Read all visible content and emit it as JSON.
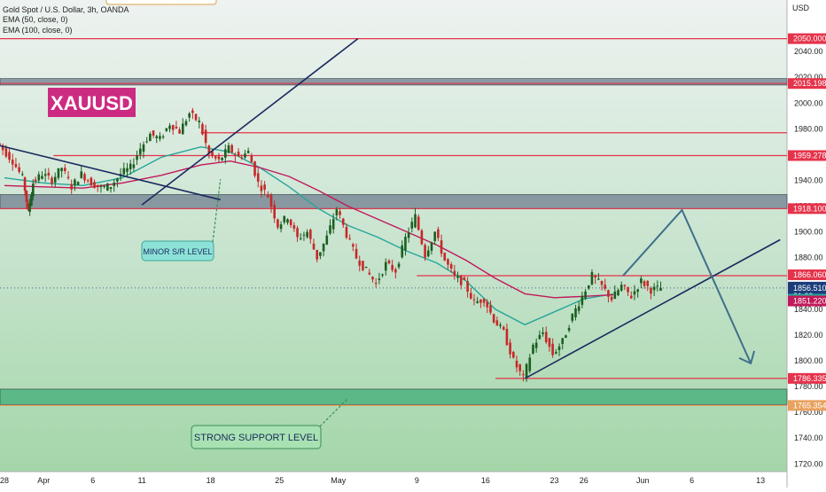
{
  "header": {
    "symbol_line": "Gold Spot / U.S. Dollar, 3h, OANDA",
    "ema50_line": "EMA (50, close, 0)",
    "ema100_line": "EMA (100, close, 0)"
  },
  "chart_data": {
    "type": "line",
    "title": "Gold Spot / U.S. Dollar, 3h, OANDA",
    "currency_label": "USD",
    "ylim": [
      1714,
      2080
    ],
    "grid": false,
    "y_ticks": [
      1720,
      1740,
      1760,
      1780,
      1800,
      1820,
      1840,
      1880,
      1900,
      1920,
      1940,
      1980,
      2000,
      2020,
      2040
    ],
    "x_ticks": [
      {
        "label": "28",
        "day": 0
      },
      {
        "label": "Apr",
        "day": 4
      },
      {
        "label": "6",
        "day": 9
      },
      {
        "label": "11",
        "day": 14
      },
      {
        "label": "18",
        "day": 21
      },
      {
        "label": "25",
        "day": 28
      },
      {
        "label": "May",
        "day": 34
      },
      {
        "label": "9",
        "day": 42
      },
      {
        "label": "16",
        "day": 49
      },
      {
        "label": "23",
        "day": 56
      },
      {
        "label": "26",
        "day": 59
      },
      {
        "label": "Jun",
        "day": 65
      },
      {
        "label": "6",
        "day": 70
      },
      {
        "label": "13",
        "day": 77
      }
    ],
    "price_labels": [
      {
        "value": 2050.0,
        "text": "2050.000",
        "color": "#e5334b"
      },
      {
        "value": 2015.198,
        "text": "2015.198",
        "color": "#e5334b"
      },
      {
        "value": 1959.278,
        "text": "1959.278",
        "color": "#e5334b"
      },
      {
        "value": 1918.1,
        "text": "1918.100",
        "color": "#e5334b"
      },
      {
        "value": 1866.06,
        "text": "1866.060",
        "color": "#e5334b"
      },
      {
        "value": 1856.51,
        "text": "1856.510",
        "color": "#1c3d7a"
      },
      {
        "value": 1851.933,
        "text": "1851.933",
        "color": "#26a69a"
      },
      {
        "value": 1851.22,
        "text": "1851.220",
        "color": "#c2185b"
      },
      {
        "value": 1786.335,
        "text": "1786.335",
        "color": "#e5334b"
      },
      {
        "value": 1765.354,
        "text": "1765.354",
        "color": "#e8a15f"
      }
    ],
    "countdown": "31:29",
    "series": [
      {
        "name": "EMA (50, close, 0)",
        "color": "#26a69a",
        "points": [
          [
            0,
            1942
          ],
          [
            4,
            1938
          ],
          [
            8,
            1936
          ],
          [
            12,
            1942
          ],
          [
            16,
            1958
          ],
          [
            20,
            1966
          ],
          [
            23,
            1962
          ],
          [
            26,
            1950
          ],
          [
            29,
            1935
          ],
          [
            32,
            1918
          ],
          [
            35,
            1905
          ],
          [
            38,
            1896
          ],
          [
            41,
            1885
          ],
          [
            44,
            1876
          ],
          [
            47,
            1862
          ],
          [
            50,
            1840
          ],
          [
            53,
            1828
          ],
          [
            56,
            1838
          ],
          [
            59,
            1848
          ],
          [
            62,
            1851.9
          ]
        ]
      },
      {
        "name": "EMA (100, close, 0)",
        "color": "#c2185b",
        "points": [
          [
            0,
            1936
          ],
          [
            4,
            1935
          ],
          [
            8,
            1934
          ],
          [
            12,
            1938
          ],
          [
            16,
            1944
          ],
          [
            20,
            1952
          ],
          [
            23,
            1955
          ],
          [
            26,
            1950
          ],
          [
            29,
            1943
          ],
          [
            32,
            1932
          ],
          [
            35,
            1920
          ],
          [
            38,
            1910
          ],
          [
            41,
            1900
          ],
          [
            44,
            1890
          ],
          [
            47,
            1878
          ],
          [
            50,
            1864
          ],
          [
            53,
            1852
          ],
          [
            56,
            1849
          ],
          [
            59,
            1850
          ],
          [
            62,
            1851.2
          ]
        ]
      }
    ],
    "price_path": [
      [
        -1,
        1972
      ],
      [
        0,
        1964
      ],
      [
        1,
        1955
      ],
      [
        2,
        1942
      ],
      [
        2.5,
        1915
      ],
      [
        3,
        1938
      ],
      [
        4,
        1945
      ],
      [
        5,
        1940
      ],
      [
        6,
        1950
      ],
      [
        7,
        1935
      ],
      [
        8,
        1945
      ],
      [
        9,
        1938
      ],
      [
        10,
        1934
      ],
      [
        11,
        1936
      ],
      [
        12,
        1945
      ],
      [
        13,
        1950
      ],
      [
        14,
        1965
      ],
      [
        15,
        1976
      ],
      [
        16,
        1972
      ],
      [
        17,
        1984
      ],
      [
        18,
        1978
      ],
      [
        19,
        1992
      ],
      [
        20,
        1985
      ],
      [
        21,
        1960
      ],
      [
        22,
        1955
      ],
      [
        23,
        1965
      ],
      [
        24,
        1958
      ],
      [
        25,
        1962
      ],
      [
        26,
        1938
      ],
      [
        27,
        1928
      ],
      [
        28,
        1905
      ],
      [
        29,
        1912
      ],
      [
        30,
        1895
      ],
      [
        31,
        1900
      ],
      [
        32,
        1880
      ],
      [
        33,
        1896
      ],
      [
        34,
        1918
      ],
      [
        35,
        1898
      ],
      [
        36,
        1880
      ],
      [
        37,
        1870
      ],
      [
        38,
        1860
      ],
      [
        39,
        1875
      ],
      [
        40,
        1870
      ],
      [
        41,
        1895
      ],
      [
        42,
        1912
      ],
      [
        43,
        1882
      ],
      [
        44,
        1900
      ],
      [
        45,
        1878
      ],
      [
        46,
        1865
      ],
      [
        47,
        1860
      ],
      [
        48,
        1845
      ],
      [
        49,
        1848
      ],
      [
        50,
        1832
      ],
      [
        51,
        1822
      ],
      [
        52,
        1800
      ],
      [
        53,
        1786.3
      ],
      [
        54,
        1812
      ],
      [
        55,
        1822
      ],
      [
        56,
        1805
      ],
      [
        57,
        1815
      ],
      [
        58,
        1835
      ],
      [
        59,
        1850
      ],
      [
        60,
        1866
      ],
      [
        61,
        1858
      ],
      [
        62,
        1848
      ],
      [
        63,
        1858
      ],
      [
        64,
        1850
      ],
      [
        65,
        1862
      ],
      [
        66,
        1855
      ],
      [
        67,
        1856.5
      ]
    ],
    "levels": [
      {
        "value": 2050.0,
        "kind": "line",
        "color": "#e5334b"
      },
      {
        "value": 2015.198,
        "kind": "line",
        "color": "#e5334b"
      },
      {
        "value": 1977,
        "kind": "line",
        "color": "#e5334b",
        "from_day": 20
      },
      {
        "value": 1959.278,
        "kind": "line",
        "color": "#e5334b",
        "from_day": 5
      },
      {
        "value": 1918.1,
        "kind": "line",
        "color": "#e5334b"
      },
      {
        "value": 1866.06,
        "kind": "line",
        "color": "#e5334b",
        "from_day": 42
      },
      {
        "value": 1786.335,
        "kind": "line",
        "color": "#e5334b",
        "from_day": 50
      },
      {
        "value": 1765.354,
        "kind": "line",
        "color": "#e8a15f"
      }
    ],
    "zones": [
      {
        "from": 2014,
        "to": 2019,
        "color": "#7a8a96"
      },
      {
        "from": 1918,
        "to": 1929,
        "color": "#7a8a96"
      },
      {
        "from": 1766,
        "to": 1778,
        "color": "#4db37f"
      }
    ],
    "trendlines": [
      {
        "from": [
          -1,
          1968
        ],
        "to": [
          22,
          1925
        ],
        "color": "#1a2a5e"
      },
      {
        "from": [
          14,
          1921
        ],
        "to": [
          36,
          2050
        ],
        "color": "#1a2a5e"
      },
      {
        "from": [
          53,
          1786.3
        ],
        "to": [
          79,
          1894
        ],
        "color": "#1a2a5e"
      }
    ],
    "projection": [
      [
        63,
        1866
      ],
      [
        69,
        1917
      ],
      [
        76,
        1798
      ]
    ],
    "annotations": [
      {
        "text": "XAUUSD",
        "kind": "title-badge"
      },
      {
        "text": "MINOR S/R LEVEL",
        "kind": "callout",
        "arrow_to": [
          22,
          1941
        ]
      },
      {
        "text": "STRONG SUPPORT LEVEL",
        "kind": "callout",
        "arrow_to": [
          35,
          1771
        ]
      }
    ]
  }
}
